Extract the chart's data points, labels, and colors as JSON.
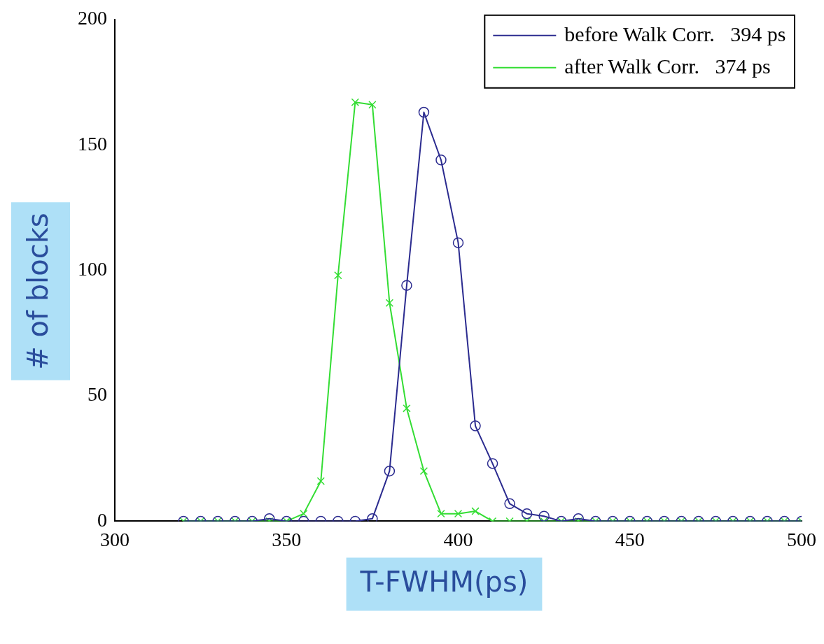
{
  "chart_data": {
    "type": "line",
    "xlabel": "T-FWHM(ps)",
    "ylabel": "# of blocks",
    "x": [
      320,
      325,
      330,
      335,
      340,
      345,
      350,
      355,
      360,
      365,
      370,
      375,
      380,
      385,
      390,
      395,
      400,
      405,
      410,
      415,
      420,
      425,
      430,
      435,
      440,
      445,
      450,
      455,
      460,
      465,
      470,
      475,
      480,
      485,
      490,
      495,
      500
    ],
    "series": [
      {
        "name": "before Walk Corr.   394 ps",
        "color": "#2b2b8f",
        "marker": "circle",
        "values": [
          0,
          0,
          0,
          0,
          0,
          1,
          0,
          0,
          0,
          0,
          0,
          1,
          20,
          94,
          163,
          144,
          111,
          38,
          23,
          7,
          3,
          2,
          0,
          1,
          0,
          0,
          0,
          0,
          0,
          0,
          0,
          0,
          0,
          0,
          0,
          0,
          0
        ]
      },
      {
        "name": "after Walk Corr.   374 ps",
        "color": "#33dd33",
        "marker": "cross",
        "values": [
          0,
          0,
          0,
          0,
          0,
          0,
          0,
          3,
          16,
          98,
          167,
          166,
          87,
          45,
          20,
          3,
          3,
          4,
          0,
          0,
          0,
          0,
          0,
          0,
          0,
          0,
          0,
          0,
          0,
          0,
          0,
          0,
          0,
          0,
          0,
          0,
          0
        ]
      }
    ],
    "xlim": [
      300,
      500
    ],
    "xticks": [
      300,
      350,
      400,
      450,
      500
    ],
    "ylim": [
      0,
      200
    ],
    "yticks": [
      0,
      50,
      100,
      150,
      200
    ],
    "grid": false,
    "legend": "top right"
  }
}
